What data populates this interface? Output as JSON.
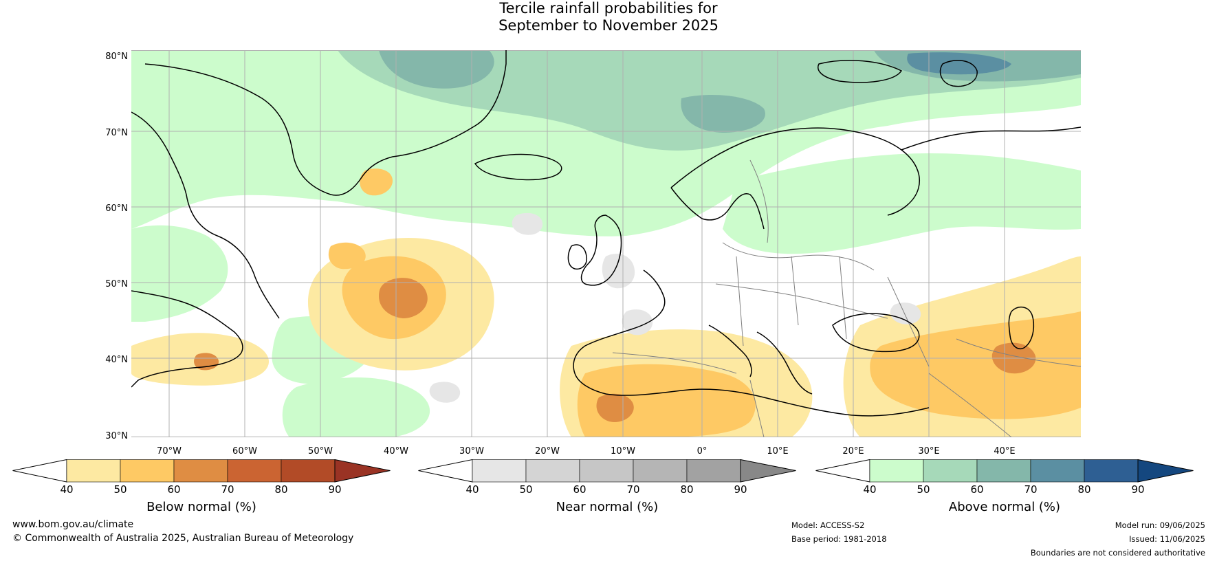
{
  "title": {
    "line1": "Tercile rainfall probabilities for",
    "line2": "September to November 2025"
  },
  "map": {
    "latitude_labels": [
      "80°N",
      "70°N",
      "60°N",
      "50°N",
      "40°N",
      "30°N"
    ],
    "longitude_labels": [
      "70°W",
      "60°W",
      "50°W",
      "40°W",
      "30°W",
      "20°W",
      "10°W",
      "0°",
      "10°E",
      "20°E",
      "30°E",
      "40°E"
    ],
    "colors": {
      "coastline": "#000000",
      "borders": "#808080",
      "gridlines": "#b0b0b0"
    }
  },
  "colorbars": [
    {
      "id": "below",
      "title": "Below normal (%)",
      "ticks": [
        "40",
        "50",
        "60",
        "70",
        "80",
        "90"
      ],
      "colors": [
        "#ffffff",
        "#fde9a2",
        "#fec964",
        "#df8d43",
        "#cb6432",
        "#b24b27",
        "#9a3324"
      ]
    },
    {
      "id": "near",
      "title": "Near normal (%)",
      "ticks": [
        "40",
        "50",
        "60",
        "70",
        "80",
        "90"
      ],
      "colors": [
        "#ffffff",
        "#e6e6e6",
        "#d4d4d4",
        "#c6c6c6",
        "#b5b5b5",
        "#a2a2a2",
        "#888888"
      ]
    },
    {
      "id": "above",
      "title": "Above normal (%)",
      "ticks": [
        "40",
        "50",
        "60",
        "70",
        "80",
        "90"
      ],
      "colors": [
        "#ffffff",
        "#ccfccc",
        "#a6d9b9",
        "#84b7aa",
        "#5b8fa2",
        "#2e5f93",
        "#14477f"
      ]
    }
  ],
  "footer": {
    "website": "www.bom.gov.au/climate",
    "copyright": "© Commonwealth of Australia 2025, Australian Bureau of Meteorology",
    "model": "Model: ACCESS-S2",
    "base_period": "Base period: 1981-2018",
    "model_run": "Model run: 09/06/2025",
    "issued": "Issued: 11/06/2025",
    "disclaimer": "Boundaries are not considered authoritative"
  }
}
